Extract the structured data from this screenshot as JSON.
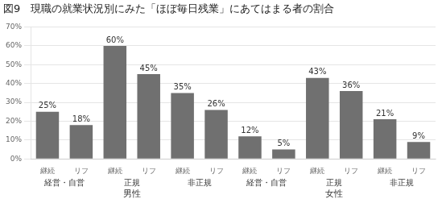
{
  "chart_data": {
    "type": "bar",
    "title": "図9　現職の就業状況別にみた「ほぼ毎日残業」にあてはまる者の割合",
    "categories": [
      "継続",
      "リフ",
      "継続",
      "リフ",
      "継続",
      "リフ",
      "継続",
      "リフ",
      "継続",
      "リフ",
      "継続",
      "リフ"
    ],
    "group_labels": [
      "経営・自営",
      "正規",
      "非正規",
      "経営・自営",
      "正規",
      "非正規"
    ],
    "supergroup_labels": [
      "男性",
      "女性"
    ],
    "values": [
      25,
      18,
      60,
      45,
      35,
      26,
      12,
      5,
      43,
      36,
      21,
      9
    ],
    "value_labels": [
      "25%",
      "18%",
      "60%",
      "45%",
      "35%",
      "26%",
      "12%",
      "5%",
      "43%",
      "36%",
      "21%",
      "9%"
    ],
    "color": "#707070",
    "ylim": [
      0,
      70
    ],
    "yticks": [
      {
        "value": 0,
        "label": "0%"
      },
      {
        "value": 10,
        "label": "10%"
      },
      {
        "value": 20,
        "label": "20%"
      },
      {
        "value": 30,
        "label": "30%"
      },
      {
        "value": 40,
        "label": "40%"
      },
      {
        "value": 50,
        "label": "50%"
      },
      {
        "value": 60,
        "label": "60%"
      },
      {
        "value": 70,
        "label": "70%"
      }
    ],
    "grid": true,
    "data_labels": true
  }
}
